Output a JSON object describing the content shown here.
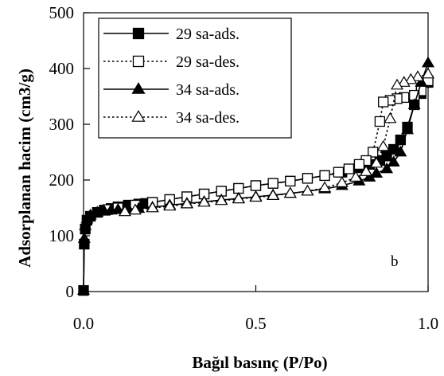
{
  "chart_data": {
    "type": "scatter",
    "title": "",
    "xlabel": "Bağıl basınç (P/Po)",
    "ylabel": "Adsorplanan hacim (cm3/g)",
    "xlim": [
      0,
      1
    ],
    "ylim": [
      0,
      500
    ],
    "x_ticks": [
      0.0,
      0.5,
      1.0
    ],
    "x_tick_labels": [
      "0.0",
      "0.5",
      "1.0"
    ],
    "y_ticks": [
      0,
      100,
      200,
      300,
      400,
      500
    ],
    "y_tick_labels": [
      "0",
      "100",
      "200",
      "300",
      "400",
      "500"
    ],
    "grid": false,
    "legend_position": "top-left",
    "annotation": "b",
    "series": [
      {
        "name": "29 sa-ads.",
        "marker": "square",
        "filled": true,
        "line": "solid",
        "x": [
          0.0,
          0.002,
          0.005,
          0.01,
          0.02,
          0.04,
          0.06,
          0.08,
          0.1,
          0.13,
          0.16,
          0.18,
          0.2,
          0.25,
          0.3,
          0.35,
          0.4,
          0.45,
          0.5,
          0.55,
          0.6,
          0.65,
          0.7,
          0.75,
          0.8,
          0.83,
          0.86,
          0.88,
          0.9,
          0.92,
          0.94,
          0.96,
          0.98,
          1.0
        ],
        "y": [
          2,
          85,
          112,
          128,
          135,
          142,
          146,
          149,
          152,
          155,
          157,
          158,
          160,
          165,
          170,
          175,
          180,
          185,
          190,
          194,
          198,
          203,
          208,
          214,
          222,
          228,
          235,
          243,
          255,
          272,
          295,
          335,
          355,
          375
        ]
      },
      {
        "name": "29 sa-des.",
        "marker": "square",
        "filled": false,
        "line": "dotted",
        "x": [
          1.0,
          0.98,
          0.96,
          0.93,
          0.91,
          0.89,
          0.87,
          0.86,
          0.84,
          0.82,
          0.8,
          0.77,
          0.74,
          0.7,
          0.65,
          0.6,
          0.55,
          0.5,
          0.45,
          0.4,
          0.35,
          0.3,
          0.25,
          0.2,
          0.15,
          0.1,
          0.07
        ],
        "y": [
          378,
          360,
          352,
          348,
          346,
          343,
          340,
          305,
          250,
          235,
          228,
          220,
          214,
          208,
          203,
          198,
          194,
          190,
          185,
          180,
          175,
          170,
          165,
          160,
          155,
          150,
          147
        ]
      },
      {
        "name": "34 sa-ads.",
        "marker": "triangle",
        "filled": true,
        "line": "solid",
        "x": [
          0.0,
          0.002,
          0.005,
          0.01,
          0.02,
          0.04,
          0.06,
          0.08,
          0.1,
          0.13,
          0.16,
          0.2,
          0.25,
          0.3,
          0.35,
          0.4,
          0.45,
          0.5,
          0.55,
          0.6,
          0.65,
          0.7,
          0.75,
          0.8,
          0.83,
          0.85,
          0.88,
          0.9,
          0.92,
          0.94,
          0.96,
          0.98,
          1.0
        ],
        "y": [
          2,
          95,
          118,
          130,
          137,
          142,
          144,
          146,
          147,
          148,
          149,
          151,
          155,
          158,
          161,
          164,
          167,
          170,
          173,
          176,
          180,
          184,
          190,
          198,
          205,
          212,
          220,
          232,
          250,
          290,
          335,
          375,
          410
        ]
      },
      {
        "name": "34 sa-des.",
        "marker": "triangle",
        "filled": false,
        "line": "dotted",
        "x": [
          1.0,
          0.97,
          0.95,
          0.93,
          0.91,
          0.89,
          0.87,
          0.85,
          0.82,
          0.79,
          0.75,
          0.7,
          0.65,
          0.6,
          0.55,
          0.5,
          0.45,
          0.4,
          0.35,
          0.3,
          0.25,
          0.2,
          0.15,
          0.12
        ],
        "y": [
          390,
          385,
          380,
          375,
          370,
          310,
          260,
          230,
          215,
          205,
          195,
          186,
          180,
          176,
          172,
          169,
          166,
          163,
          160,
          157,
          153,
          150,
          146,
          143
        ]
      }
    ]
  }
}
